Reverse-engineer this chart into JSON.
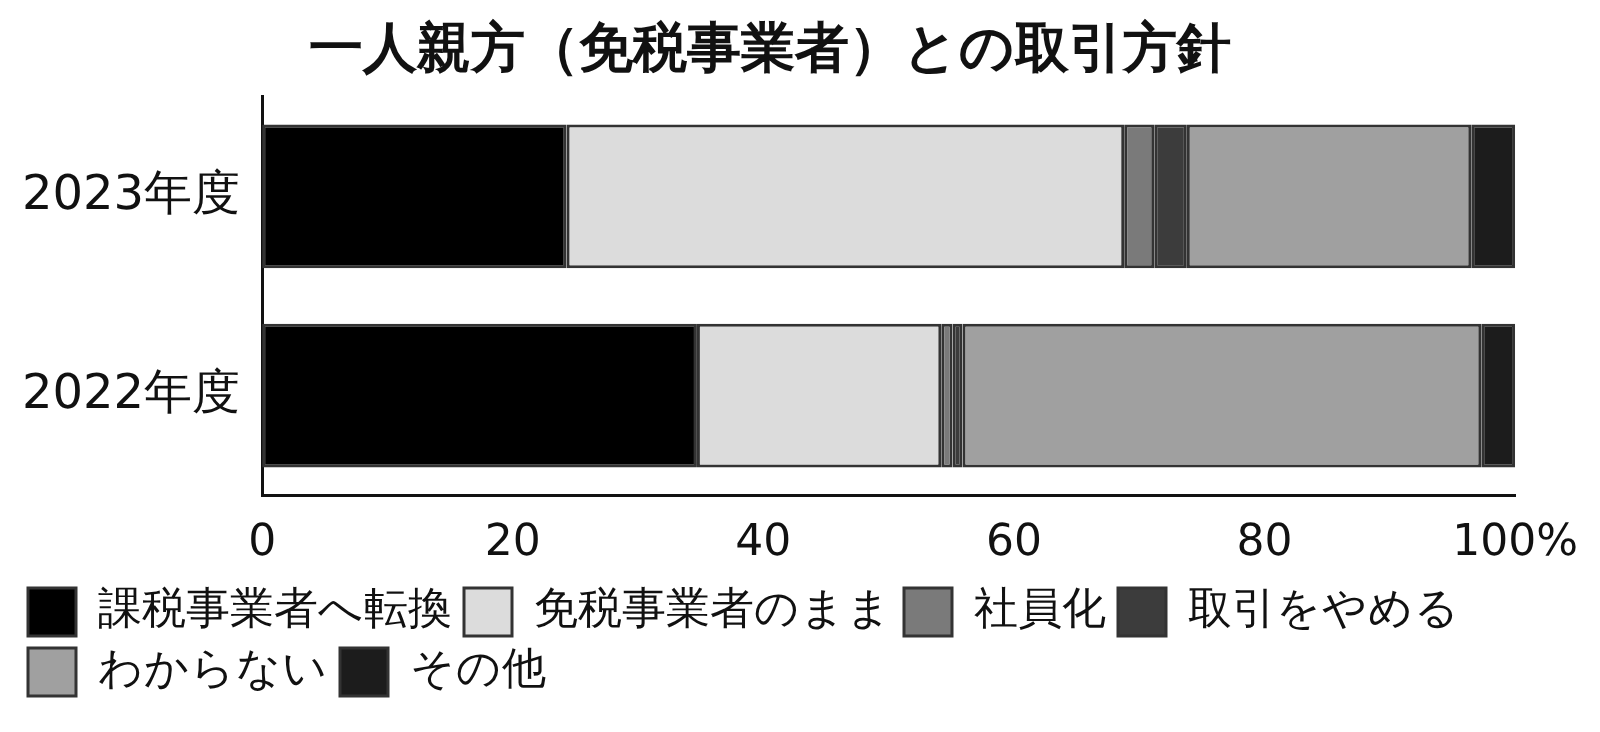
{
  "chart_data": {
    "type": "bar",
    "orientation": "horizontal",
    "stacked": true,
    "title": "一人親方（免税事業者）との取引方針",
    "categories": [
      "2023年度",
      "2022年度"
    ],
    "series": [
      {
        "name": "課税事業者へ転換",
        "color": "#000000",
        "values": [
          24.3,
          34.7
        ]
      },
      {
        "name": "免税事業者のまま",
        "color": "#dcdcdc",
        "values": [
          44.5,
          19.5
        ]
      },
      {
        "name": "社員化",
        "color": "#7a7a7a",
        "values": [
          2.4,
          0.9
        ]
      },
      {
        "name": "取引をやめる",
        "color": "#3c3c3c",
        "values": [
          2.6,
          0.8
        ]
      },
      {
        "name": "わからない",
        "color": "#a0a0a0",
        "values": [
          22.7,
          41.4
        ]
      },
      {
        "name": "その他",
        "color": "#1c1c1c",
        "values": [
          3.5,
          2.7
        ]
      }
    ],
    "xlim": [
      0,
      100
    ],
    "xticks": [
      0,
      20,
      40,
      60,
      80,
      {
        "value": 100,
        "label": "100%"
      }
    ],
    "grid": false,
    "legend": "bottom"
  }
}
